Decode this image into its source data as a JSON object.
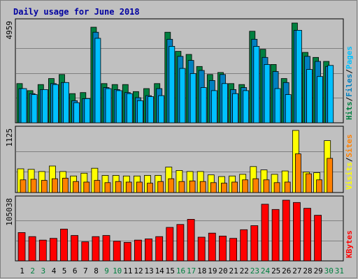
{
  "chart_data": {
    "type": "bar",
    "title": "Daily usage for June 2018",
    "days": [
      "1",
      "2",
      "3",
      "4",
      "5",
      "6",
      "7",
      "8",
      "9",
      "10",
      "11",
      "12",
      "13",
      "14",
      "15",
      "16",
      "17",
      "18",
      "19",
      "20",
      "21",
      "22",
      "23",
      "24",
      "25",
      "26",
      "27",
      "28",
      "29",
      "30",
      "31"
    ],
    "weekend_days": [
      "2",
      "3",
      "9",
      "10",
      "16",
      "17",
      "23",
      "24",
      "30",
      "31"
    ],
    "colors": {
      "title": "#0000a0",
      "background": "#c0c0c0",
      "panel": "#c0c0c0",
      "hits": "#008040",
      "files": "#0080c0",
      "pages": "#00c0ff",
      "visits": "#ffff00",
      "sites": "#ff8000",
      "kbytes": "#ff0000",
      "weekday_label": "#000000",
      "weekend_label": "#008040"
    },
    "panels": [
      {
        "name": "hits-files-pages",
        "ymax_label": "4959",
        "ymax": 4959,
        "legend": [
          {
            "text": "Hits",
            "color": "#008040"
          },
          {
            "text": "Files",
            "color": "#0080c0"
          },
          {
            "text": "Pages",
            "color": "#00c0ff"
          }
        ],
        "series": [
          {
            "name": "Hits",
            "color": "#008040",
            "values": [
              1950,
              1600,
              1900,
              2200,
              2400,
              1450,
              1500,
              4750,
              1950,
              1900,
              1900,
              1550,
              1700,
              1950,
              4500,
              3550,
              3400,
              2800,
              2400,
              2500,
              1950,
              1900,
              4550,
              3650,
              2900,
              2200,
              5000,
              3500,
              3250,
              3050,
              0
            ]
          },
          {
            "name": "Files",
            "color": "#0080c0",
            "values": [
              1700,
              1450,
              1650,
              1950,
              2000,
              1100,
              1200,
              4500,
              1750,
              1650,
              1500,
              1250,
              1350,
              1700,
              4150,
              3300,
              3100,
              2600,
              2100,
              2400,
              1650,
              1750,
              4150,
              3250,
              2550,
              2000,
              4600,
              3300,
              3050,
              2800,
              0
            ]
          },
          {
            "name": "Pages",
            "color": "#00c0ff",
            "values": [
              1700,
              1400,
              1650,
              1900,
              2000,
              1000,
              1200,
              4200,
              1700,
              1600,
              1450,
              1100,
              1300,
              1350,
              3800,
              2700,
              2450,
              1750,
              1600,
              1950,
              1450,
              1600,
              3800,
              2900,
              1700,
              1400,
              4600,
              2650,
              2300,
              2850,
              0
            ]
          }
        ]
      },
      {
        "name": "visits-sites",
        "ymax_label": "1125",
        "ymax": 1125,
        "legend": [
          {
            "text": "Visits",
            "color": "#ffff00"
          },
          {
            "text": "Sites",
            "color": "#ff8000"
          }
        ],
        "series": [
          {
            "name": "Visits",
            "color": "#ffff00",
            "values": [
              430,
              420,
              380,
              480,
              380,
              300,
              350,
              440,
              310,
              310,
              300,
              300,
              310,
              310,
              460,
              400,
              380,
              380,
              320,
              290,
              300,
              330,
              470,
              410,
              330,
              390,
              1125,
              370,
              360,
              940,
              0
            ]
          },
          {
            "name": "Sites",
            "color": "#ff8000",
            "values": [
              230,
              240,
              220,
              250,
              260,
              200,
              190,
              220,
              180,
              200,
              190,
              190,
              170,
              200,
              250,
              200,
              210,
              200,
              180,
              170,
              190,
              230,
              250,
              230,
              180,
              190,
              700,
              340,
              230,
              620,
              0
            ]
          }
        ]
      },
      {
        "name": "kbytes",
        "ymax_label": "105038",
        "ymax": 105038,
        "legend": [
          {
            "text": "KBytes",
            "color": "#ff0000"
          }
        ],
        "series": [
          {
            "name": "KBytes",
            "color": "#ff0000",
            "values": [
              49000,
              42000,
              36000,
              39000,
              55000,
              44000,
              33000,
              42000,
              44000,
              34000,
              32000,
              36000,
              38000,
              42000,
              58000,
              63000,
              72000,
              41000,
              48000,
              43000,
              39000,
              54000,
              61000,
              98000,
              89000,
              110000,
              101000,
              91000,
              79000,
              0,
              0
            ]
          }
        ]
      }
    ]
  }
}
